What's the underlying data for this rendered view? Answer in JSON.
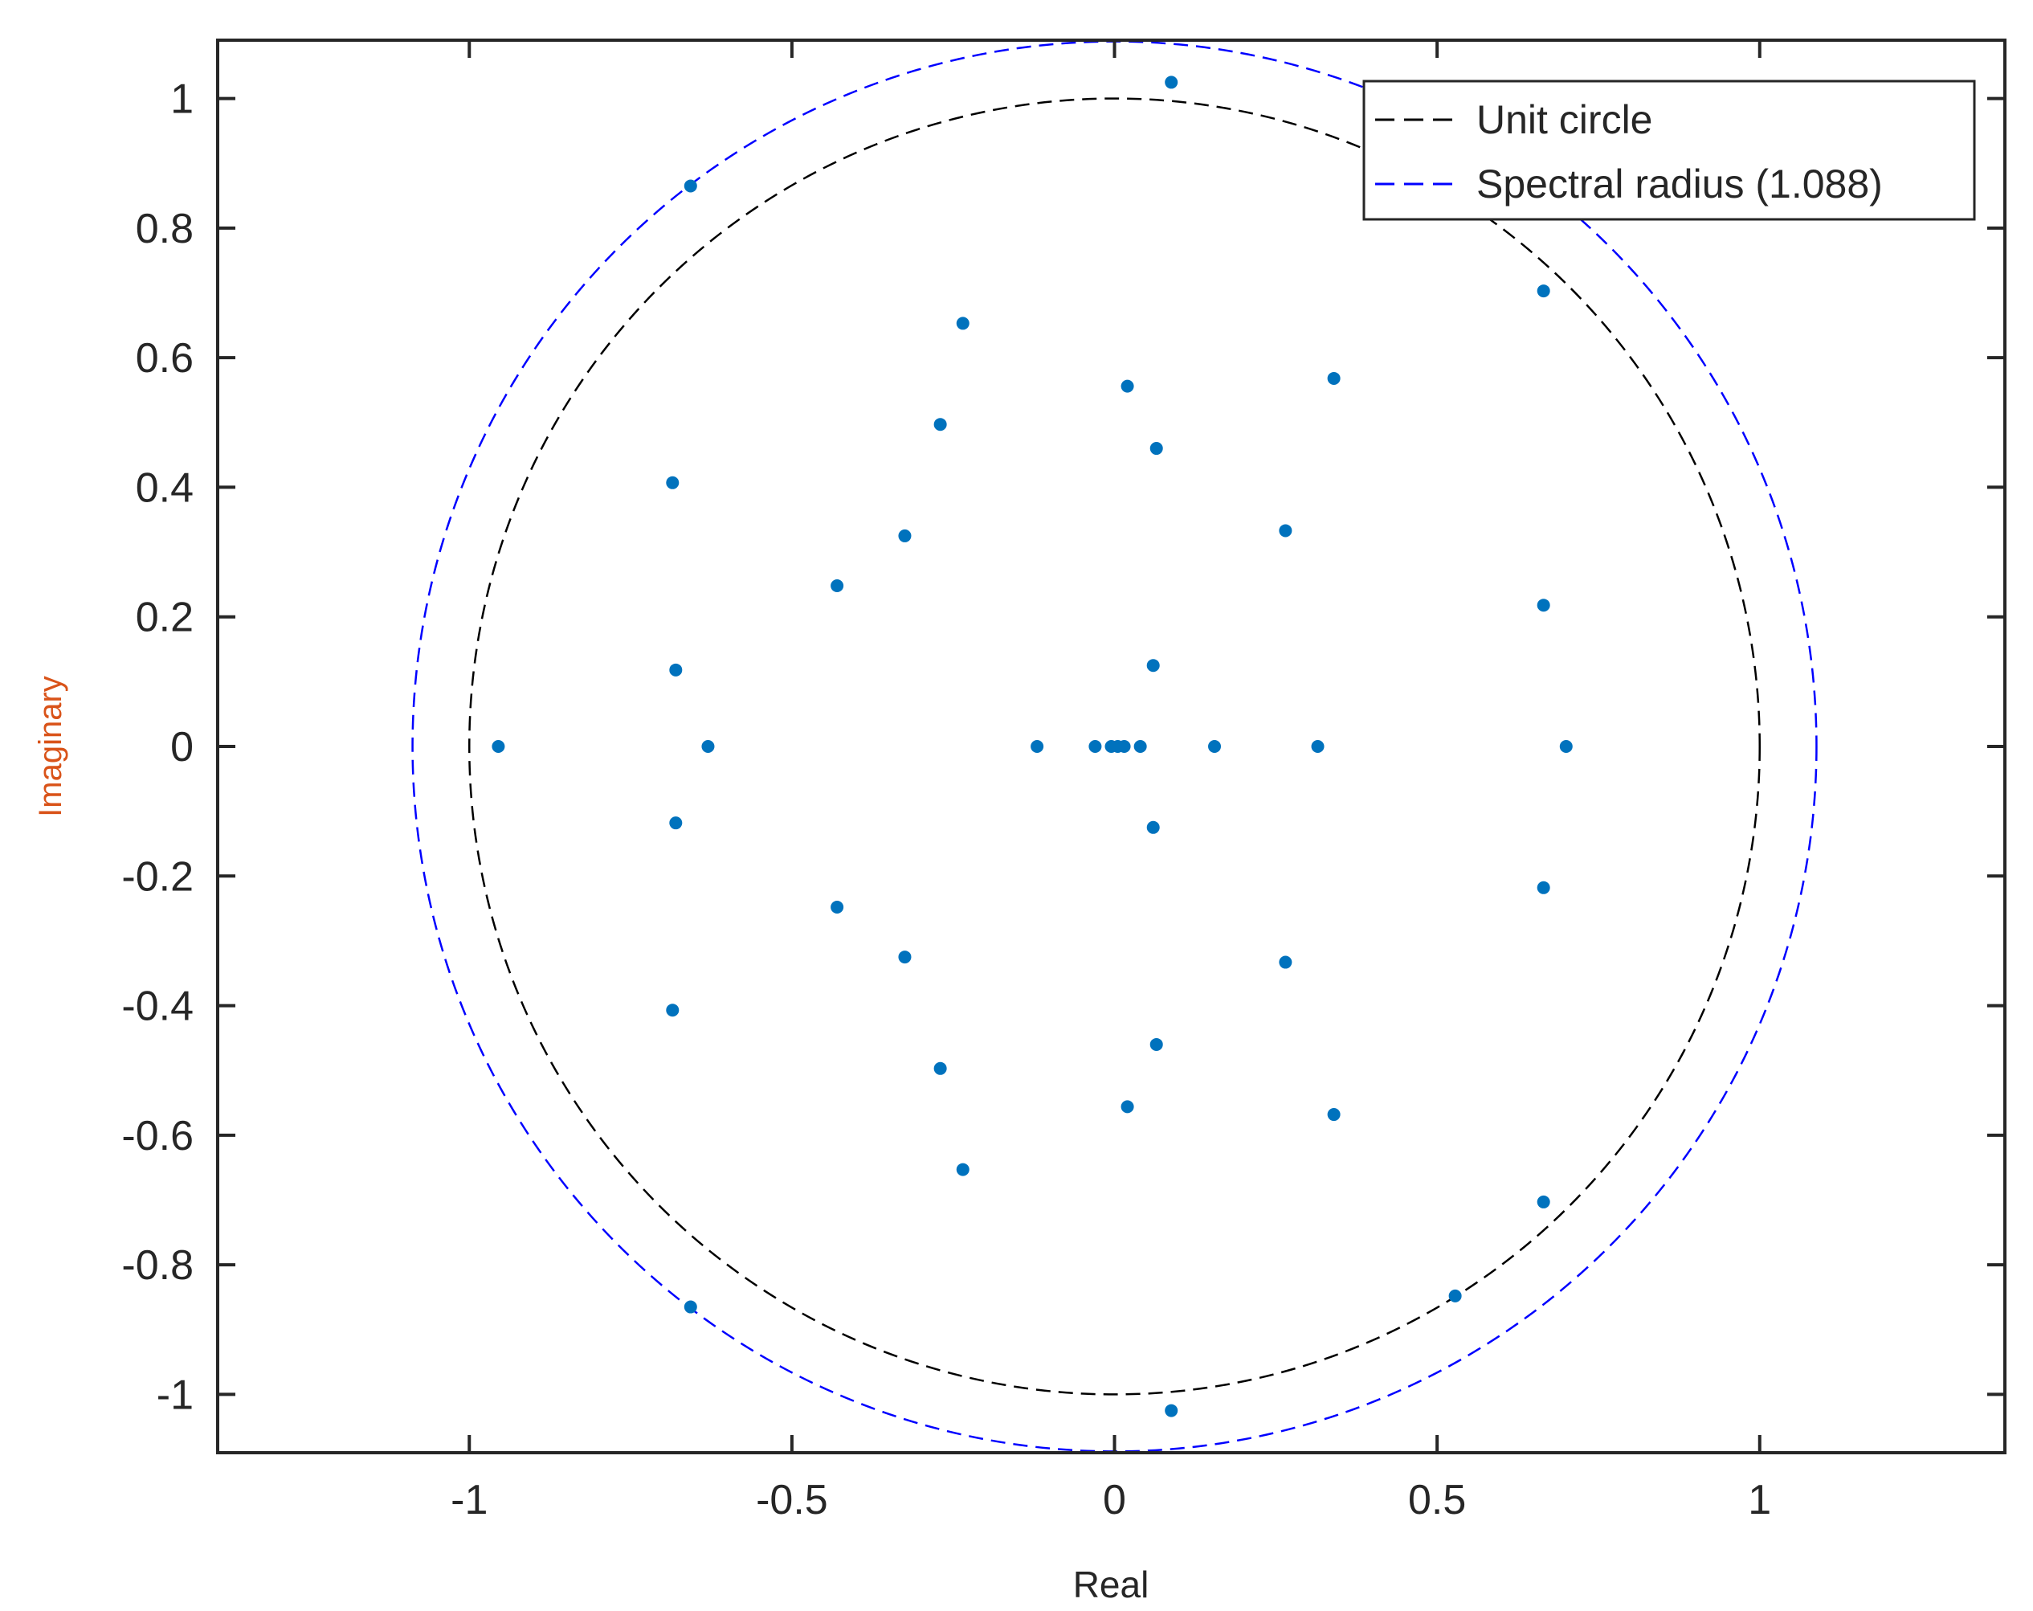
{
  "chart_data": {
    "type": "scatter",
    "xlabel": "Real",
    "ylabel": "Imaginary",
    "xlim": [
      -1.39,
      1.38
    ],
    "ylim": [
      -1.09,
      1.09
    ],
    "xticks": [
      "-1",
      "-0.5",
      "0",
      "0.5",
      "1"
    ],
    "xtick_values": [
      -1,
      -0.5,
      0,
      0.5,
      1
    ],
    "yticks": [
      "-1",
      "-0.8",
      "-0.6",
      "-0.4",
      "-0.2",
      "0",
      "0.2",
      "0.4",
      "0.6",
      "0.8",
      "1"
    ],
    "ytick_values": [
      -1,
      -0.8,
      -0.6,
      -0.4,
      -0.2,
      0,
      0.2,
      0.4,
      0.6,
      0.8,
      1
    ],
    "grid": false,
    "legend_position": "top-right",
    "legend": [
      {
        "label": "Unit circle",
        "color": "#000000",
        "style": "dashed"
      },
      {
        "label": "Spectral radius (1.088)",
        "color": "#0000ff",
        "style": "dashed"
      }
    ],
    "circles": [
      {
        "radius": 1.0,
        "color": "#000000",
        "style": "dashed"
      },
      {
        "radius": 1.088,
        "color": "#0000ff",
        "style": "dashed"
      }
    ],
    "point_color": "#0072bd",
    "points": [
      {
        "x": 0.088,
        "y": 1.025
      },
      {
        "x": 0.088,
        "y": -1.025
      },
      {
        "x": -0.657,
        "y": 0.865
      },
      {
        "x": -0.657,
        "y": -0.865
      },
      {
        "x": 0.665,
        "y": 0.703
      },
      {
        "x": 0.665,
        "y": -0.703
      },
      {
        "x": -0.235,
        "y": 0.653
      },
      {
        "x": -0.235,
        "y": -0.653
      },
      {
        "x": 0.34,
        "y": 0.568
      },
      {
        "x": 0.34,
        "y": -0.568
      },
      {
        "x": 0.02,
        "y": 0.556
      },
      {
        "x": 0.02,
        "y": -0.556
      },
      {
        "x": -0.27,
        "y": 0.497
      },
      {
        "x": -0.27,
        "y": -0.497
      },
      {
        "x": 0.065,
        "y": 0.46
      },
      {
        "x": 0.065,
        "y": -0.46
      },
      {
        "x": -0.685,
        "y": 0.407
      },
      {
        "x": -0.685,
        "y": -0.407
      },
      {
        "x": -0.325,
        "y": 0.325
      },
      {
        "x": -0.325,
        "y": -0.325
      },
      {
        "x": 0.265,
        "y": 0.333
      },
      {
        "x": 0.265,
        "y": -0.333
      },
      {
        "x": -0.43,
        "y": 0.248
      },
      {
        "x": -0.43,
        "y": -0.248
      },
      {
        "x": 0.665,
        "y": 0.218
      },
      {
        "x": 0.665,
        "y": -0.218
      },
      {
        "x": 0.06,
        "y": 0.125
      },
      {
        "x": 0.06,
        "y": -0.125
      },
      {
        "x": -0.68,
        "y": 0.118
      },
      {
        "x": -0.68,
        "y": -0.118
      },
      {
        "x": 0.528,
        "y": -0.848
      },
      {
        "x": -0.955,
        "y": 0
      },
      {
        "x": -0.63,
        "y": 0
      },
      {
        "x": -0.12,
        "y": 0
      },
      {
        "x": -0.03,
        "y": 0
      },
      {
        "x": -0.005,
        "y": 0
      },
      {
        "x": 0.005,
        "y": 0
      },
      {
        "x": 0.015,
        "y": 0
      },
      {
        "x": 0.04,
        "y": 0
      },
      {
        "x": 0.155,
        "y": 0
      },
      {
        "x": 0.315,
        "y": 0
      },
      {
        "x": 0.7,
        "y": 0
      }
    ]
  }
}
